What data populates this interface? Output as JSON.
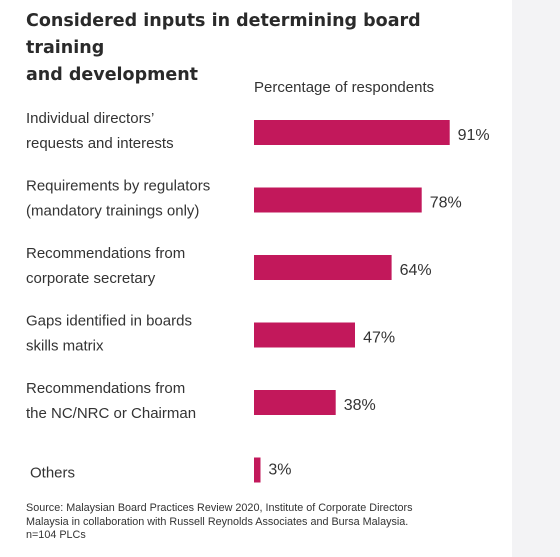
{
  "title_line1": "Considered inputs in determining board training",
  "title_line2": "and development",
  "source": {
    "line1": "Source: Malaysian Board Practices Review 2020, Institute of Corporate Directors",
    "line2": "Malaysia in collaboration with Russell Reynolds Associates and Bursa Malaysia.",
    "line3": "n=104 PLCs"
  },
  "chart_data": {
    "type": "bar",
    "orientation": "horizontal",
    "subtitle": "Percentage of respondents",
    "bar_color": "#c2185b",
    "xlim": [
      0,
      100
    ],
    "grid": false,
    "legend": "none",
    "categories": [
      [
        "Individual directors’",
        "requests and interests"
      ],
      [
        "Requirements by regulators",
        "(mandatory trainings only)"
      ],
      [
        "Recommendations from",
        "corporate secretary"
      ],
      [
        "Gaps identified in boards",
        "skills matrix"
      ],
      [
        "Recommendations from",
        "the NC/NRC or Chairman"
      ],
      [
        "Others"
      ]
    ],
    "values": [
      91,
      78,
      64,
      47,
      38,
      3
    ],
    "value_labels": [
      "91%",
      "78%",
      "64%",
      "47%",
      "38%",
      "3%"
    ]
  }
}
